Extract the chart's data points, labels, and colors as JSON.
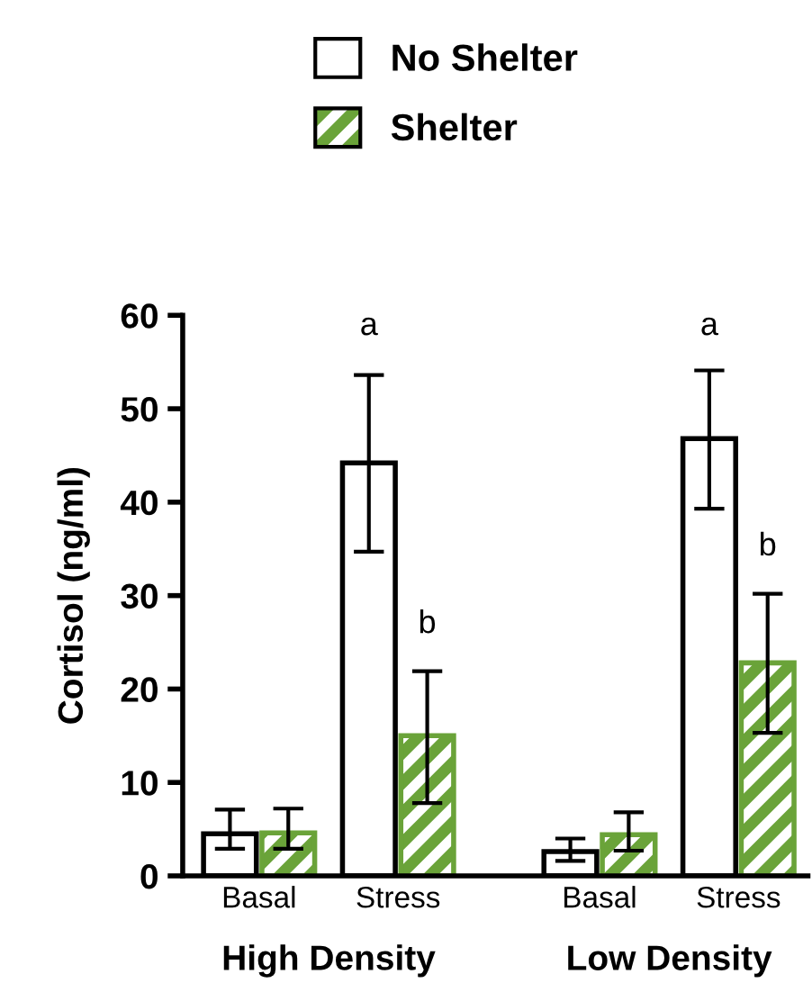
{
  "chart_data": {
    "type": "bar",
    "ylabel": "Cortisol (ng/ml)",
    "categories": [
      "Basal",
      "Stress",
      "Basal",
      "Stress"
    ],
    "series": [
      {
        "name": "No Shelter",
        "color": "#000000",
        "values": [
          4.5,
          44.2,
          2.6,
          46.8
        ],
        "errors": [
          [
            2.9,
            7.1
          ],
          [
            34.7,
            53.6
          ],
          [
            1.6,
            4.0
          ],
          [
            39.3,
            54.1
          ]
        ]
      },
      {
        "name": "Shelter",
        "color": "#6aa339",
        "values": [
          4.6,
          15.0,
          4.4,
          22.8
        ],
        "errors": [
          [
            2.9,
            7.2
          ],
          [
            7.8,
            21.9
          ],
          [
            2.7,
            6.8
          ],
          [
            15.3,
            30.2
          ]
        ]
      }
    ],
    "annotations": [
      "a",
      "b",
      "a",
      "b",
      "High Density",
      "Low Density"
    ],
    "ylim": [
      0,
      60
    ],
    "yticks": [
      0,
      10,
      20,
      30,
      40,
      50,
      60
    ],
    "grid": false,
    "legend": "top"
  }
}
